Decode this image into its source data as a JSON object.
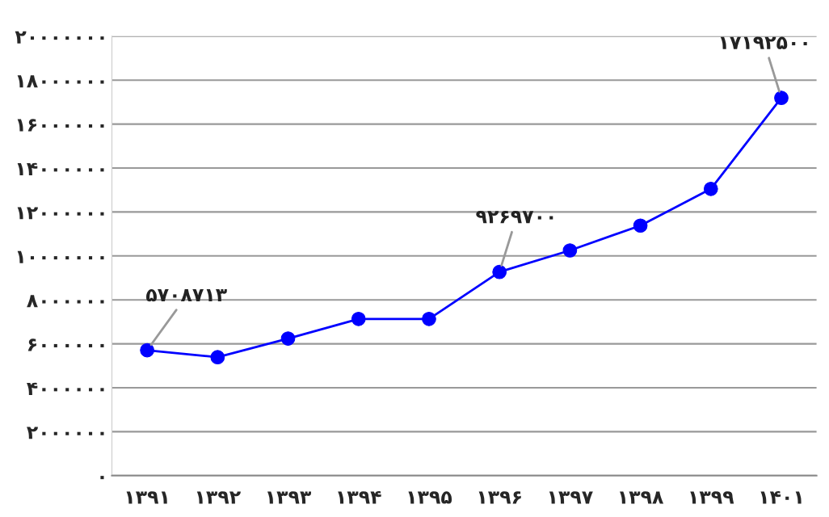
{
  "chart_data": {
    "type": "line",
    "categories": [
      "۱۳۹۱",
      "۱۳۹۲",
      "۱۳۹۳",
      "۱۳۹۴",
      "۱۳۹۵",
      "۱۳۹۶",
      "۱۳۹۷",
      "۱۳۹۸",
      "۱۳۹۹",
      "۱۴۰۱"
    ],
    "series": [
      {
        "color": "#0000ff",
        "values": [
          5708713,
          5390000,
          6240000,
          7130000,
          7130000,
          9269700,
          10250000,
          11380000,
          13050000,
          17192500
        ],
        "value_labels": [
          "۵۷۰۸۷۱۳",
          null,
          null,
          null,
          null,
          "۹۲۶۹۷۰۰",
          null,
          null,
          null,
          "۱۷۱۹۲۵۰۰"
        ]
      }
    ],
    "ylim": [
      0,
      20000000
    ],
    "yticks": [
      {
        "value": 0,
        "label": "۰"
      },
      {
        "value": 2000000,
        "label": "۲۰۰۰۰۰۰"
      },
      {
        "value": 4000000,
        "label": "۴۰۰۰۰۰۰"
      },
      {
        "value": 6000000,
        "label": "۶۰۰۰۰۰۰"
      },
      {
        "value": 8000000,
        "label": "۸۰۰۰۰۰۰"
      },
      {
        "value": 10000000,
        "label": "۱۰۰۰۰۰۰۰"
      },
      {
        "value": 12000000,
        "label": "۱۲۰۰۰۰۰۰"
      },
      {
        "value": 14000000,
        "label": "۱۴۰۰۰۰۰۰"
      },
      {
        "value": 16000000,
        "label": "۱۶۰۰۰۰۰۰"
      },
      {
        "value": 18000000,
        "label": "۱۸۰۰۰۰۰۰"
      },
      {
        "value": 20000000,
        "label": "۲۰۰۰۰۰۰۰"
      }
    ],
    "grid": "y",
    "marker": "circle",
    "line_style": "solid"
  }
}
